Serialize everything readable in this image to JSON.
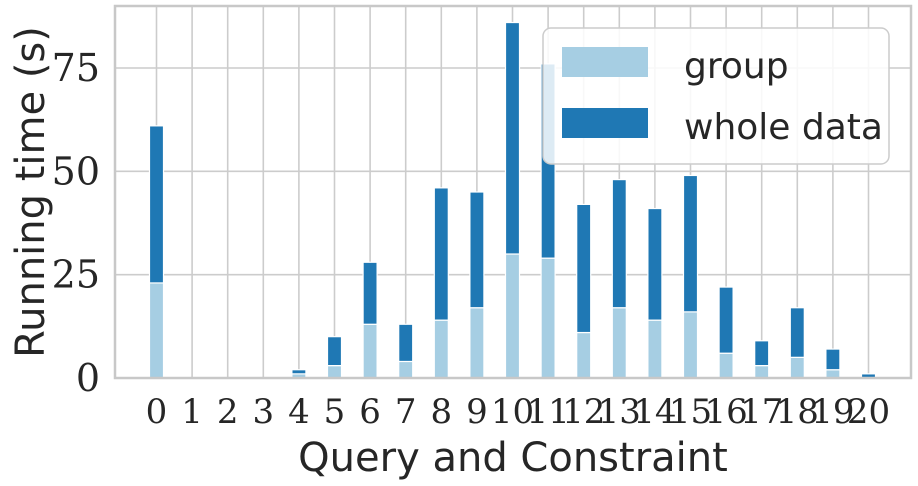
{
  "chart_data": {
    "type": "bar",
    "stacked": true,
    "categories": [
      "0",
      "1",
      "2",
      "3",
      "4",
      "5",
      "6",
      "7",
      "8",
      "9",
      "10",
      "11",
      "12",
      "13",
      "14",
      "15",
      "16",
      "17",
      "18",
      "19",
      "20"
    ],
    "series": [
      {
        "name": "group",
        "color": "#a6cee3",
        "values": [
          23,
          0,
          0,
          0,
          1,
          3,
          13,
          4,
          14,
          17,
          30,
          29,
          11,
          17,
          14,
          16,
          6,
          3,
          5,
          2,
          0
        ]
      },
      {
        "name": "whole data",
        "color": "#1f78b4",
        "values": [
          38,
          0,
          0,
          0,
          1,
          7,
          15,
          9,
          32,
          28,
          56,
          47,
          31,
          31,
          27,
          33,
          16,
          6,
          12,
          5,
          1
        ]
      }
    ],
    "xlabel": "Query and Constraint",
    "ylabel": "Running time (s)",
    "yticks": [
      0,
      25,
      50,
      75
    ],
    "ylim": [
      0,
      90
    ],
    "grid": true,
    "legend_position": "top-right"
  }
}
